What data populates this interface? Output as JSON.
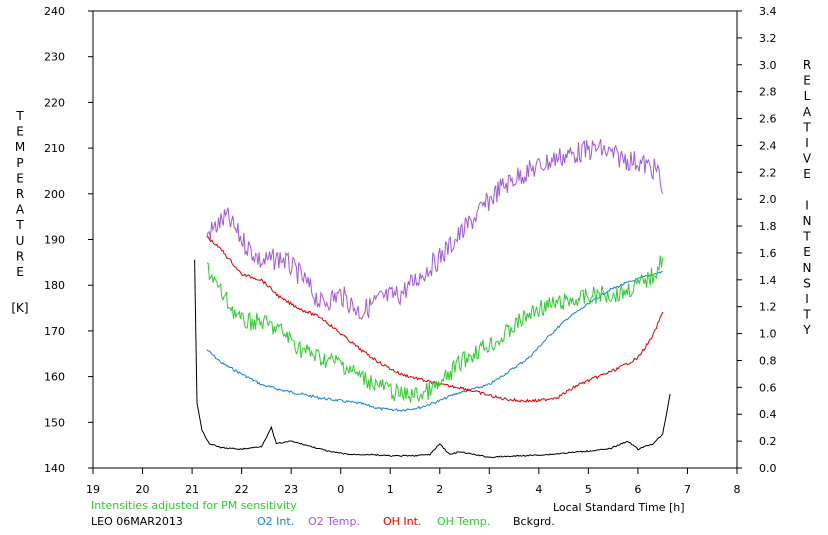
{
  "chart_data": {
    "type": "line",
    "left_axis": {
      "label_letters": [
        "T",
        "E",
        "M",
        "P",
        "E",
        "R",
        "A",
        "T",
        "U",
        "R",
        "E"
      ],
      "unit": "[K]",
      "ylim": [
        140,
        240
      ],
      "ticks": [
        "140",
        "150",
        "160",
        "170",
        "180",
        "190",
        "200",
        "210",
        "220",
        "230",
        "240"
      ]
    },
    "right_axis": {
      "label_letters": [
        "R",
        "E",
        "L",
        "A",
        "T",
        "I",
        "V",
        "E",
        "",
        "I",
        "N",
        "T",
        "E",
        "N",
        "S",
        "I",
        "T",
        "Y"
      ],
      "ylim": [
        0.0,
        3.4
      ],
      "ticks": [
        "0.0",
        "0.2",
        "0.4",
        "0.6",
        "0.8",
        "1.0",
        "1.2",
        "1.4",
        "1.6",
        "1.8",
        "2.0",
        "2.2",
        "2.4",
        "2.6",
        "2.8",
        "3.0",
        "3.2",
        "3.4"
      ]
    },
    "x_axis": {
      "label": "Local Standard Time [h]",
      "ticks": [
        "19",
        "20",
        "21",
        "22",
        "23",
        "0",
        "1",
        "2",
        "3",
        "4",
        "5",
        "6",
        "7",
        "8"
      ]
    },
    "note": "Intensities adjusted for PM sensitivity",
    "station_date": "LEO 06MAR2013",
    "colors": {
      "o2_int": "#1a7fe0",
      "o2_temp": "#a259d9",
      "oh_int": "#e00000",
      "oh_temp": "#2ecc2e",
      "bckgrd": "#000000"
    },
    "series": [
      {
        "name": "O2 Int.",
        "axis": "right",
        "x": [
          21.3,
          21.6,
          22.0,
          22.4,
          22.8,
          23.2,
          23.6,
          24.0,
          24.4,
          24.8,
          25.2,
          25.6,
          26.0,
          26.3,
          26.6,
          27.0,
          27.4,
          27.8,
          28.2,
          28.6,
          29.0,
          29.4,
          29.8,
          30.2,
          30.5
        ],
        "values": [
          0.88,
          0.78,
          0.7,
          0.62,
          0.58,
          0.55,
          0.52,
          0.5,
          0.48,
          0.44,
          0.43,
          0.45,
          0.5,
          0.55,
          0.58,
          0.62,
          0.72,
          0.82,
          0.98,
          1.12,
          1.22,
          1.32,
          1.38,
          1.43,
          1.46
        ]
      },
      {
        "name": "O2 Temp.",
        "axis": "left",
        "x": [
          21.3,
          21.7,
          22.0,
          22.4,
          22.8,
          23.2,
          23.6,
          24.0,
          24.4,
          24.8,
          25.2,
          25.6,
          26.0,
          26.4,
          26.8,
          27.2,
          27.6,
          28.0,
          28.4,
          28.8,
          29.2,
          29.6,
          30.0,
          30.4,
          30.5
        ],
        "values": [
          191,
          195,
          190,
          185,
          186,
          182,
          176,
          178,
          174,
          177,
          178,
          182,
          186,
          191,
          196,
          201,
          204,
          206,
          208,
          209,
          210,
          208,
          207,
          205,
          200
        ]
      },
      {
        "name": "OH Int.",
        "axis": "right",
        "x": [
          21.3,
          21.6,
          22.0,
          22.4,
          22.8,
          23.2,
          23.6,
          24.0,
          24.4,
          24.8,
          25.2,
          25.6,
          26.0,
          26.4,
          26.8,
          27.2,
          27.6,
          28.0,
          28.4,
          28.8,
          29.2,
          29.6,
          30.0,
          30.3,
          30.5
        ],
        "values": [
          1.72,
          1.62,
          1.44,
          1.4,
          1.26,
          1.18,
          1.12,
          1.0,
          0.88,
          0.78,
          0.7,
          0.66,
          0.62,
          0.6,
          0.56,
          0.52,
          0.5,
          0.5,
          0.53,
          0.62,
          0.68,
          0.74,
          0.82,
          0.98,
          1.16
        ]
      },
      {
        "name": "OH Temp.",
        "axis": "left",
        "x": [
          21.3,
          21.6,
          22.0,
          22.4,
          22.8,
          23.2,
          23.6,
          24.0,
          24.4,
          24.8,
          25.2,
          25.6,
          26.0,
          26.4,
          26.8,
          27.2,
          27.6,
          28.0,
          28.4,
          28.8,
          29.2,
          29.6,
          30.0,
          30.3,
          30.5
        ],
        "values": [
          184,
          178,
          172,
          172,
          170,
          166,
          164,
          163,
          160,
          158,
          156,
          156,
          158,
          163,
          166,
          168,
          172,
          175,
          176,
          177,
          178,
          178,
          180,
          182,
          186
        ]
      },
      {
        "name": "Bckgrd.",
        "axis": "right",
        "x": [
          21.05,
          21.1,
          21.2,
          21.35,
          21.6,
          22.0,
          22.4,
          22.6,
          22.7,
          23.0,
          23.4,
          23.8,
          24.2,
          24.6,
          25.0,
          25.4,
          25.8,
          26.0,
          26.2,
          26.4,
          27.0,
          27.6,
          28.2,
          28.8,
          29.4,
          29.8,
          30.0,
          30.3,
          30.5,
          30.65
        ],
        "values": [
          1.55,
          0.48,
          0.28,
          0.18,
          0.15,
          0.14,
          0.16,
          0.3,
          0.18,
          0.2,
          0.16,
          0.12,
          0.1,
          0.1,
          0.09,
          0.09,
          0.1,
          0.18,
          0.1,
          0.12,
          0.08,
          0.09,
          0.1,
          0.12,
          0.14,
          0.2,
          0.14,
          0.18,
          0.25,
          0.55
        ]
      }
    ]
  }
}
